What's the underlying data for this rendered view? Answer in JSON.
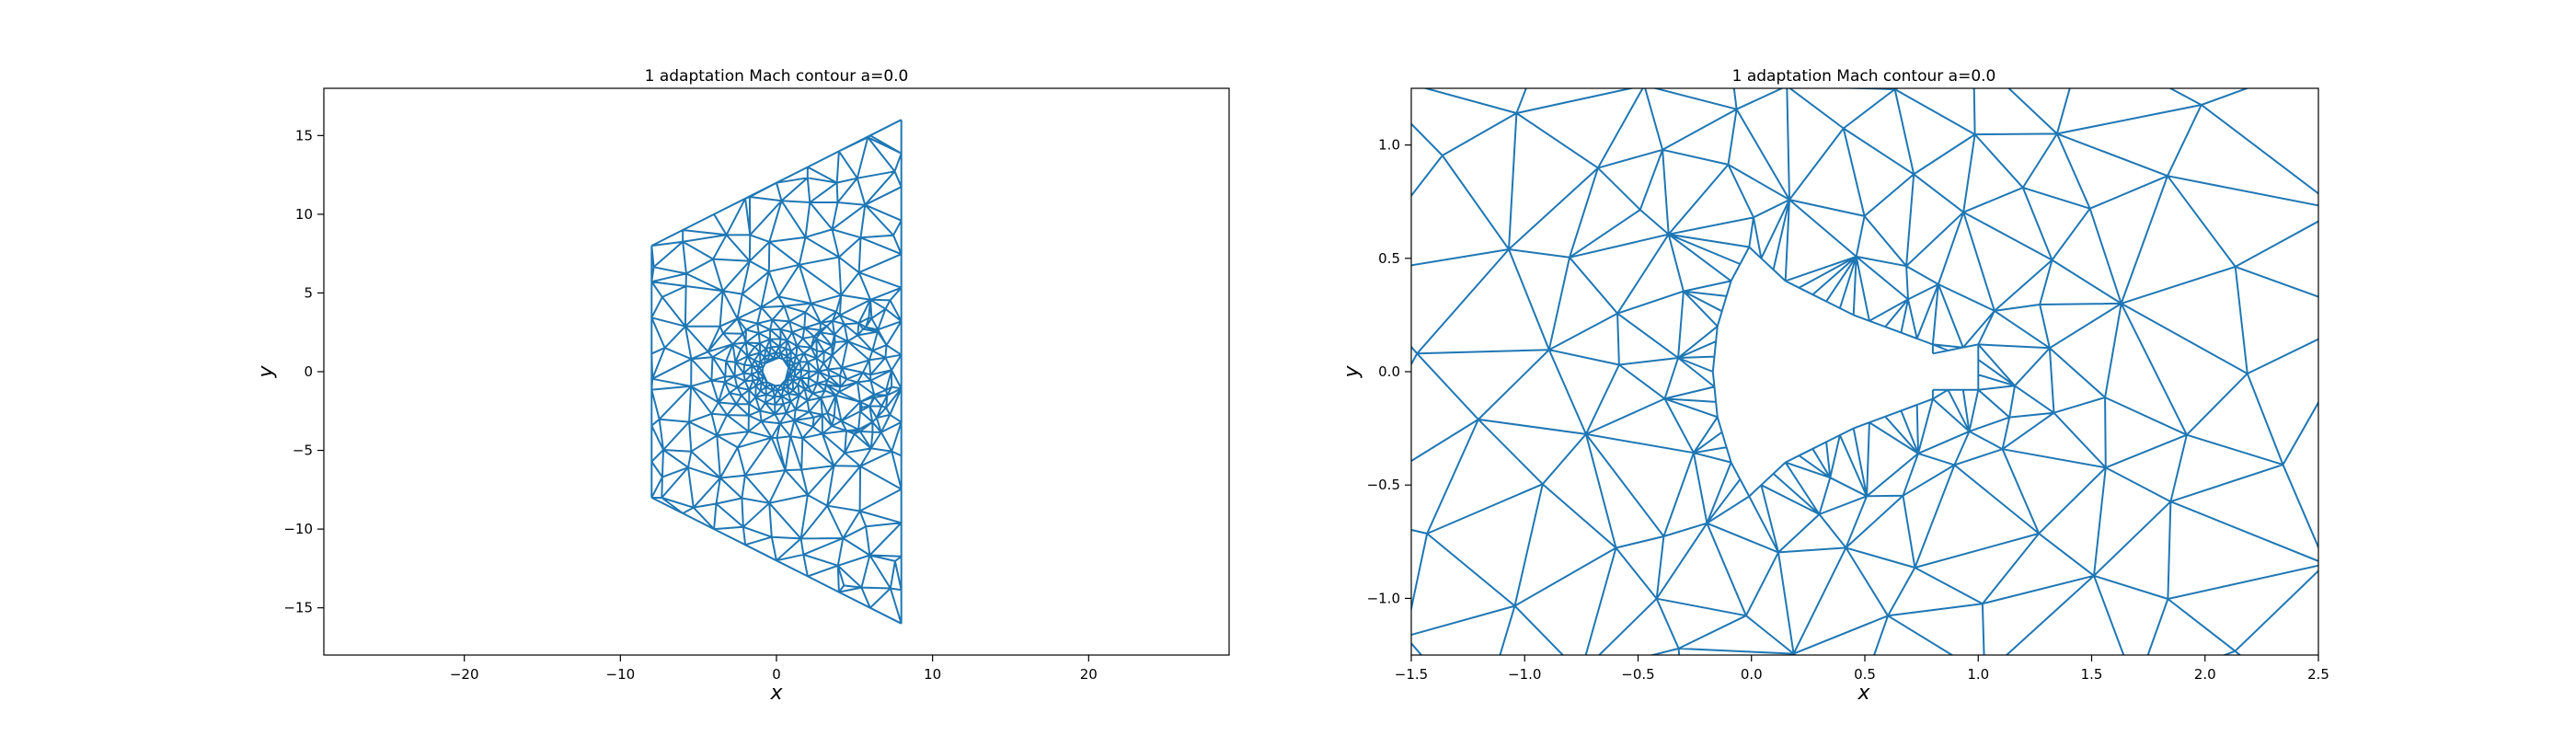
{
  "chart_data": [
    {
      "type": "mesh",
      "title": "1 adaptation Mach contour a=0.0",
      "xlabel": "x",
      "ylabel": "y",
      "xlim": [
        -29,
        29
      ],
      "ylim": [
        -18,
        18
      ],
      "xticks": [
        -20,
        -10,
        0,
        10,
        20
      ],
      "xtick_labels": [
        "−20",
        "−10",
        "0",
        "10",
        "20"
      ],
      "yticks": [
        -15,
        -10,
        -5,
        0,
        5,
        10,
        15
      ],
      "ytick_labels": [
        "−15",
        "−10",
        "−5",
        "0",
        "5",
        "10",
        "15"
      ],
      "mesh_color": "#1f77b4",
      "domain_outline": [
        [
          -8,
          8
        ],
        [
          8,
          16
        ],
        [
          8,
          -16
        ],
        [
          -8,
          -8
        ]
      ],
      "body": {
        "center": [
          0,
          0
        ],
        "radius": 0.75
      },
      "grid": false,
      "legend": "none"
    },
    {
      "type": "mesh",
      "title": "1 adaptation Mach contour a=0.0",
      "xlabel": "x",
      "ylabel": "y",
      "xlim": [
        -1.5,
        2.5
      ],
      "ylim": [
        -1.25,
        1.25
      ],
      "xticks": [
        -1.5,
        -1.0,
        -0.5,
        0.0,
        0.5,
        1.0,
        1.5,
        2.0,
        2.5
      ],
      "xtick_labels": [
        "−1.5",
        "−1.0",
        "−0.5",
        "0.0",
        "0.5",
        "1.0",
        "1.5",
        "2.0",
        "2.5"
      ],
      "yticks": [
        -1.0,
        -0.5,
        0.0,
        0.5,
        1.0
      ],
      "ytick_labels": [
        "−1.0",
        "−0.5",
        "0.0",
        "0.5",
        "1.0"
      ],
      "mesh_color": "#1f77b4",
      "body_outline": [
        [
          -0.17,
          0.0
        ],
        [
          -0.15,
          0.2
        ],
        [
          -0.09,
          0.4
        ],
        [
          -0.01,
          0.55
        ],
        [
          0.15,
          0.4
        ],
        [
          0.45,
          0.25
        ],
        [
          0.8,
          0.12
        ],
        [
          0.8,
          0.08
        ],
        [
          1.0,
          0.12
        ],
        [
          1.0,
          -0.08
        ],
        [
          0.8,
          -0.08
        ],
        [
          0.8,
          -0.12
        ],
        [
          0.45,
          -0.25
        ],
        [
          0.15,
          -0.4
        ],
        [
          -0.01,
          -0.55
        ],
        [
          -0.09,
          -0.4
        ],
        [
          -0.15,
          -0.2
        ]
      ],
      "grid": false,
      "legend": "none"
    }
  ]
}
